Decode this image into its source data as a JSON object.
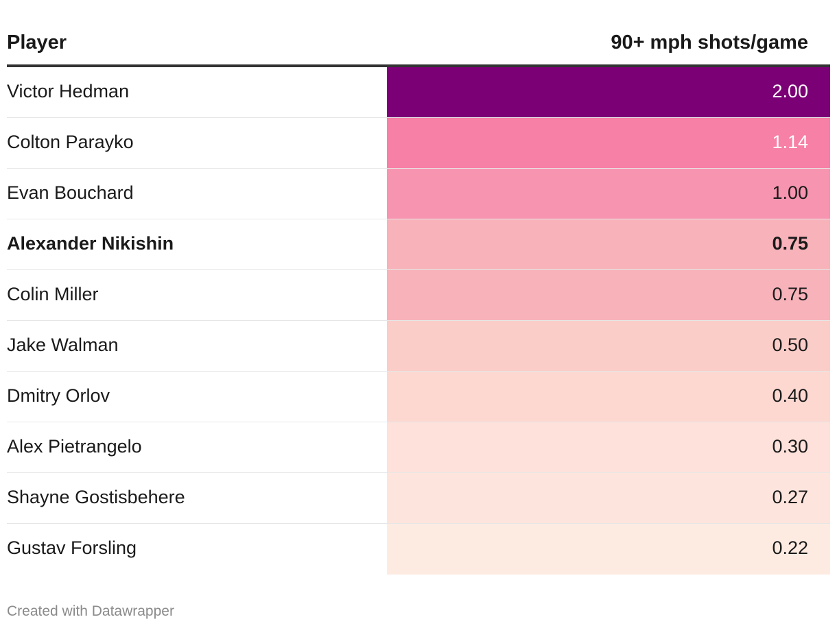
{
  "chart_data": {
    "type": "table",
    "columns": [
      "Player",
      "90+ mph shots/game"
    ],
    "rows": [
      {
        "player": "Victor Hedman",
        "value": "2.00",
        "color": "#7b0075",
        "text_color": "#ffffff",
        "bold": false
      },
      {
        "player": "Colton Parayko",
        "value": "1.14",
        "color": "#f780a6",
        "text_color": "#ffffff",
        "bold": false
      },
      {
        "player": "Evan Bouchard",
        "value": "1.00",
        "color": "#f795b0",
        "text_color": "#1a1a1a",
        "bold": false
      },
      {
        "player": "Alexander Nikishin",
        "value": "0.75",
        "color": "#f7b2ba",
        "text_color": "#1a1a1a",
        "bold": true
      },
      {
        "player": "Colin Miller",
        "value": "0.75",
        "color": "#f7b2ba",
        "text_color": "#1a1a1a",
        "bold": false
      },
      {
        "player": "Jake Walman",
        "value": "0.50",
        "color": "#fbcdc8",
        "text_color": "#1a1a1a",
        "bold": false
      },
      {
        "player": "Dmitry Orlov",
        "value": "0.40",
        "color": "#fcd8d1",
        "text_color": "#1a1a1a",
        "bold": false
      },
      {
        "player": "Alex Pietrangelo",
        "value": "0.30",
        "color": "#fde1da",
        "text_color": "#1a1a1a",
        "bold": false
      },
      {
        "player": "Shayne Gostisbehere",
        "value": "0.27",
        "color": "#fde5dd",
        "text_color": "#1a1a1a",
        "bold": false
      },
      {
        "player": "Gustav Forsling",
        "value": "0.22",
        "color": "#fdebe2",
        "text_color": "#1a1a1a",
        "bold": false
      }
    ]
  },
  "footer": {
    "credit": "Created with Datawrapper"
  }
}
